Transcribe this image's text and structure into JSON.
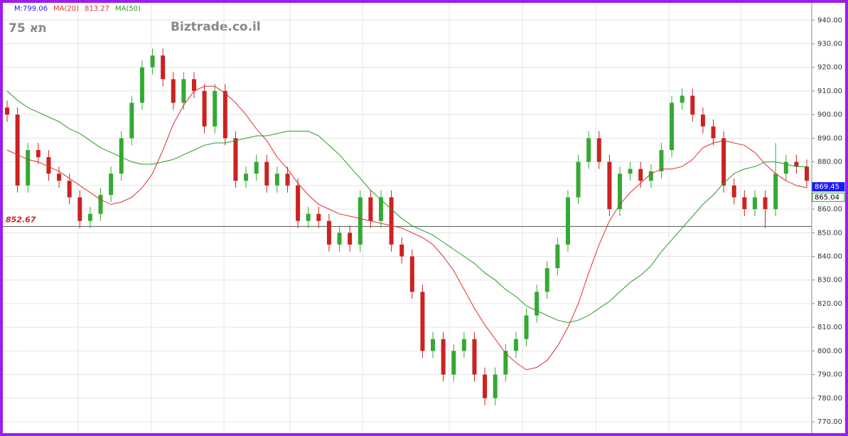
{
  "chart_data": {
    "type": "candlestick",
    "header_price": "M:799.06",
    "watermark": "תא 75",
    "source": "Biztrade.co.il",
    "reference_line": {
      "value": 852.67,
      "label": "852.67"
    },
    "last_values": [
      {
        "value": 869.45,
        "color": "#1a1aff"
      },
      {
        "value": 865.04,
        "color": "#22aa22"
      }
    ],
    "up_color": "#33aa33",
    "down_color": "#cc2222",
    "ylim": [
      767,
      947
    ],
    "yticks": [
      {
        "value": 770,
        "label": "770.00"
      },
      {
        "value": 780,
        "label": "780.00"
      },
      {
        "value": 790,
        "label": "790.00"
      },
      {
        "value": 800,
        "label": "800.00"
      },
      {
        "value": 810,
        "label": "810.00"
      },
      {
        "value": 820,
        "label": "820.00"
      },
      {
        "value": 830,
        "label": "830.00"
      },
      {
        "value": 840,
        "label": "840.00"
      },
      {
        "value": 850,
        "label": "850.00"
      },
      {
        "value": 860,
        "label": "860.00"
      },
      {
        "value": 870,
        "label": "870.00"
      },
      {
        "value": 880,
        "label": "880.00"
      },
      {
        "value": 890,
        "label": "890.00"
      },
      {
        "value": 900,
        "label": "900.00"
      },
      {
        "value": 910,
        "label": "910.00"
      },
      {
        "value": 920,
        "label": "920.00"
      },
      {
        "value": 930,
        "label": "930.00"
      },
      {
        "value": 940,
        "label": "940.00"
      }
    ],
    "grid": true,
    "candles": [
      [
        903,
        906,
        897,
        900
      ],
      [
        900,
        903,
        867,
        870
      ],
      [
        870,
        888,
        867,
        885
      ],
      [
        885,
        888,
        879,
        882
      ],
      [
        882,
        885,
        872,
        875
      ],
      [
        875,
        878,
        869,
        872
      ],
      [
        872,
        875,
        862,
        865
      ],
      [
        865,
        868,
        852,
        855
      ],
      [
        855,
        861,
        852,
        858
      ],
      [
        858,
        869,
        855,
        866
      ],
      [
        866,
        878,
        863,
        875
      ],
      [
        875,
        893,
        872,
        890
      ],
      [
        890,
        908,
        887,
        905
      ],
      [
        905,
        923,
        902,
        920
      ],
      [
        920,
        928,
        917,
        925
      ],
      [
        925,
        928,
        912,
        915
      ],
      [
        915,
        918,
        902,
        905
      ],
      [
        905,
        918,
        902,
        915
      ],
      [
        915,
        918,
        907,
        910
      ],
      [
        910,
        913,
        892,
        895
      ],
      [
        895,
        913,
        892,
        910
      ],
      [
        910,
        913,
        887,
        890
      ],
      [
        890,
        893,
        869,
        872
      ],
      [
        872,
        878,
        869,
        875
      ],
      [
        875,
        883,
        872,
        880
      ],
      [
        880,
        883,
        867,
        870
      ],
      [
        870,
        878,
        867,
        875
      ],
      [
        875,
        878,
        867,
        870
      ],
      [
        870,
        873,
        852,
        855
      ],
      [
        855,
        861,
        852,
        858
      ],
      [
        858,
        861,
        852,
        855
      ],
      [
        855,
        858,
        842,
        845
      ],
      [
        845,
        853,
        842,
        850
      ],
      [
        850,
        853,
        842,
        845
      ],
      [
        845,
        868,
        842,
        865
      ],
      [
        865,
        868,
        852,
        855
      ],
      [
        855,
        868,
        852,
        865
      ],
      [
        865,
        868,
        842,
        845
      ],
      [
        845,
        848,
        837,
        840
      ],
      [
        840,
        843,
        822,
        825
      ],
      [
        825,
        828,
        797,
        800
      ],
      [
        800,
        808,
        797,
        805
      ],
      [
        805,
        808,
        787,
        790
      ],
      [
        790,
        803,
        787,
        800
      ],
      [
        800,
        808,
        797,
        805
      ],
      [
        805,
        808,
        787,
        790
      ],
      [
        790,
        793,
        777,
        780
      ],
      [
        780,
        793,
        777,
        790
      ],
      [
        790,
        803,
        787,
        800
      ],
      [
        800,
        808,
        797,
        805
      ],
      [
        805,
        818,
        802,
        815
      ],
      [
        815,
        828,
        812,
        825
      ],
      [
        825,
        838,
        822,
        835
      ],
      [
        835,
        848,
        832,
        845
      ],
      [
        845,
        868,
        842,
        865
      ],
      [
        865,
        883,
        862,
        880
      ],
      [
        880,
        893,
        877,
        890
      ],
      [
        890,
        893,
        877,
        880
      ],
      [
        880,
        883,
        857,
        860
      ],
      [
        860,
        878,
        857,
        875
      ],
      [
        875,
        880,
        872,
        877
      ],
      [
        877,
        880,
        869,
        872
      ],
      [
        872,
        879,
        869,
        876
      ],
      [
        876,
        888,
        873,
        885
      ],
      [
        885,
        908,
        882,
        905
      ],
      [
        905,
        911,
        902,
        908
      ],
      [
        908,
        911,
        897,
        900
      ],
      [
        900,
        903,
        892,
        895
      ],
      [
        895,
        898,
        887,
        890
      ],
      [
        890,
        893,
        867,
        870
      ],
      [
        870,
        873,
        862,
        865
      ],
      [
        865,
        868,
        857,
        860
      ],
      [
        860,
        868,
        857,
        865
      ],
      [
        865,
        868,
        852,
        860
      ],
      [
        860,
        888,
        857,
        875
      ],
      [
        875,
        883,
        872,
        880
      ],
      [
        880,
        883,
        875,
        878
      ],
      [
        878,
        881,
        869,
        872
      ]
    ],
    "series": [
      {
        "name": "MA(20)",
        "header_value": 813.27,
        "color": "#e03030",
        "values": [
          885,
          883,
          881,
          880,
          878,
          876,
          873,
          870,
          867,
          864,
          862,
          863,
          865,
          869,
          875,
          885,
          896,
          904,
          910,
          912,
          912,
          909,
          905,
          900,
          894,
          889,
          882,
          877,
          871,
          866,
          862,
          860,
          858,
          857,
          856,
          855,
          854,
          853,
          852,
          850,
          848,
          845,
          840,
          834,
          826,
          818,
          811,
          805,
          799,
          795,
          792,
          793,
          796,
          802,
          810,
          820,
          833,
          845,
          855,
          862,
          867,
          871,
          875,
          877,
          877,
          878,
          881,
          886,
          888,
          889,
          888,
          887,
          884,
          879,
          875,
          872,
          870,
          869
        ]
      },
      {
        "name": "MA(50)",
        "color": "#22a022",
        "values": [
          910,
          906,
          903,
          901,
          899,
          897,
          894,
          892,
          889,
          886,
          884,
          882,
          880,
          879,
          879,
          880,
          881,
          883,
          885,
          887,
          888,
          888,
          889,
          890,
          891,
          891,
          892,
          893,
          893,
          893,
          891,
          887,
          883,
          878,
          873,
          868,
          864,
          860,
          856,
          853,
          851,
          849,
          846,
          843,
          840,
          837,
          833,
          830,
          826,
          823,
          819,
          817,
          815,
          813,
          812,
          813,
          815,
          818,
          821,
          825,
          829,
          832,
          836,
          842,
          847,
          852,
          857,
          862,
          866,
          871,
          875,
          877,
          878,
          880,
          880,
          879,
          878,
          878
        ]
      }
    ]
  }
}
